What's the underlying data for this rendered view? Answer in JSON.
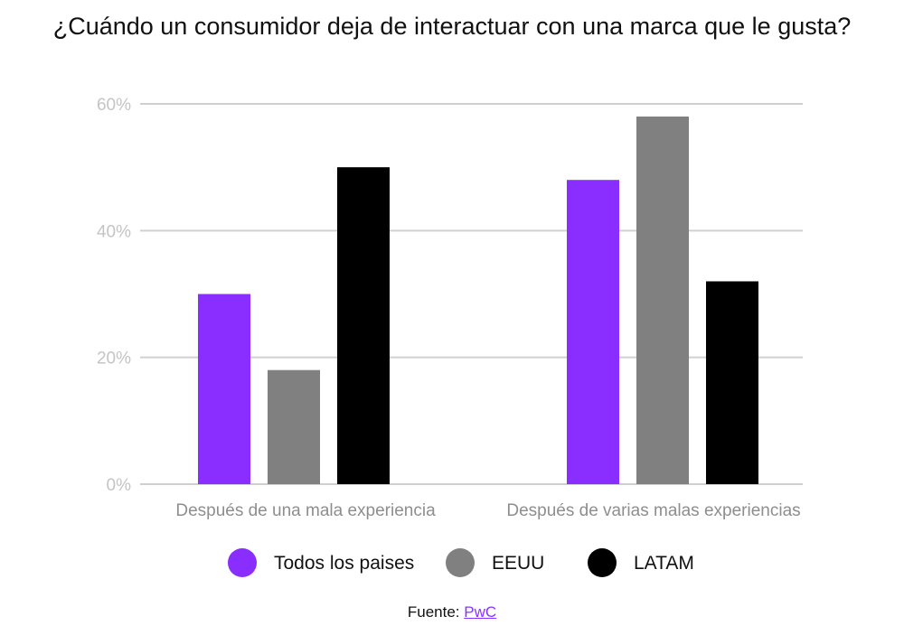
{
  "chart_data": {
    "type": "bar",
    "title": "¿Cuándo un consumidor deja de interactuar con una marca que le gusta?",
    "categories": [
      "Después de una mala experiencia",
      "Después de varias malas experiencias"
    ],
    "series": [
      {
        "name": "Todos los paises",
        "values": [
          30,
          48
        ],
        "color": "#8a2eff"
      },
      {
        "name": "EEUU",
        "values": [
          18,
          58
        ],
        "color": "#808080"
      },
      {
        "name": "LATAM",
        "values": [
          50,
          32
        ],
        "color": "#000000"
      }
    ],
    "y_ticks": [
      "0%",
      "20%",
      "40%",
      "60%"
    ],
    "y_tick_values": [
      0,
      20,
      40,
      60
    ],
    "ylim": [
      0,
      60
    ],
    "grid": true,
    "legend_position": "bottom"
  },
  "source": {
    "label": "Fuente: ",
    "link_text": "PwC"
  }
}
